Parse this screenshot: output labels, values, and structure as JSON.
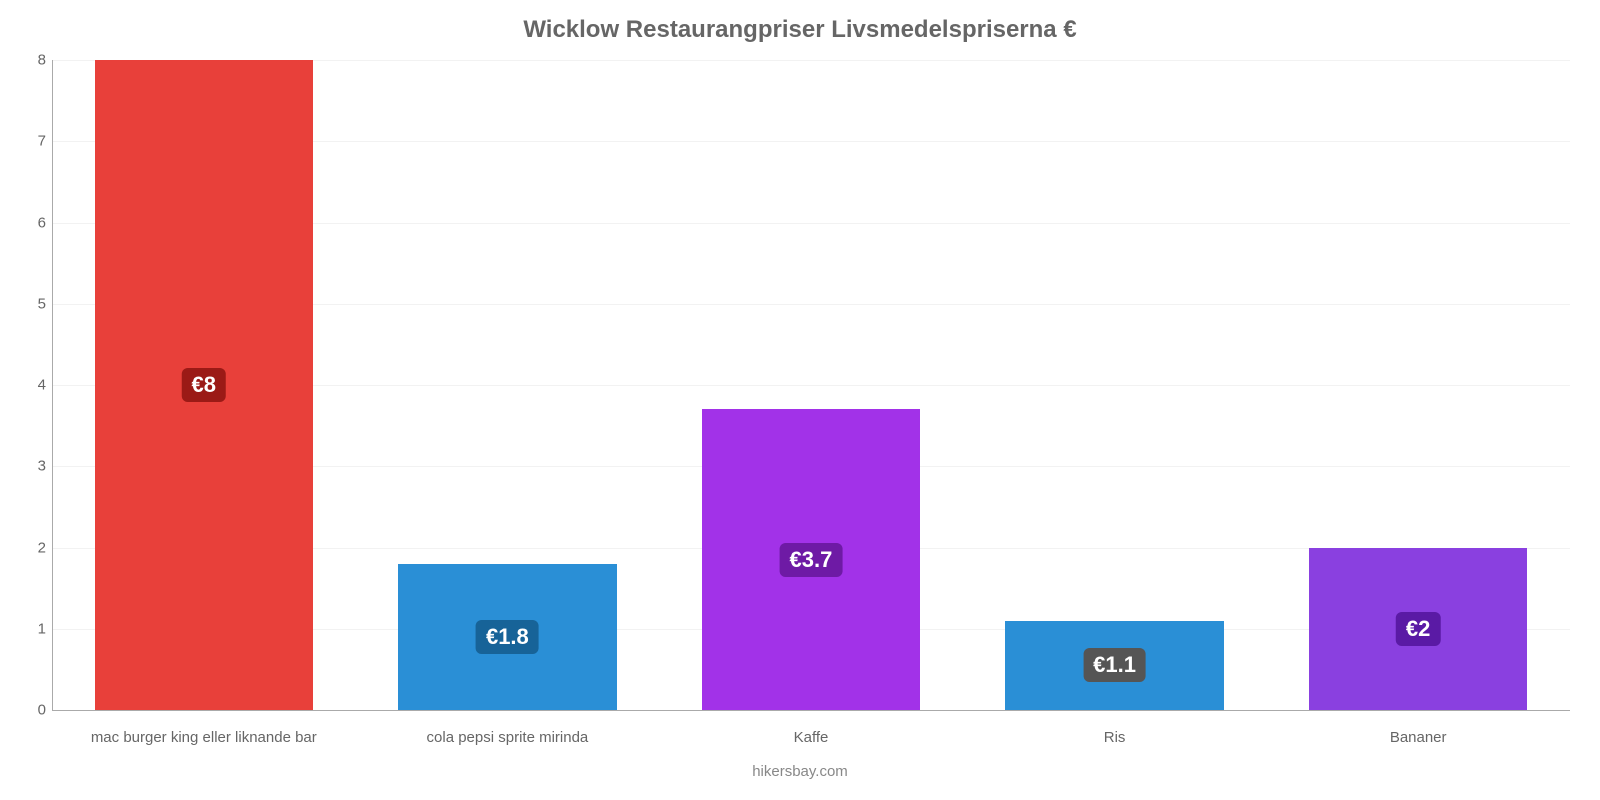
{
  "chart": {
    "type": "bar",
    "title": "Wicklow Restaurangpriser Livsmedelspriserna €",
    "title_fontsize": 24,
    "title_color": "#666666",
    "credit": "hikersbay.com",
    "credit_fontsize": 15,
    "credit_color": "#888888",
    "background_color": "#ffffff",
    "grid_color_zero": "#aaaaaa",
    "grid_color": "#f2f2f2",
    "ylim": [
      0,
      8
    ],
    "ytick_step": 1,
    "ytick_fontsize": 15,
    "ytick_color": "#666666",
    "xlabel_fontsize": 15,
    "xlabel_color": "#666666",
    "bar_width_pct": 72,
    "badge_fontsize": 22,
    "badge_radius": 6,
    "categories": [
      "mac burger king eller liknande bar",
      "cola pepsi sprite mirinda",
      "Kaffe",
      "Ris",
      "Bananer"
    ],
    "values": [
      8,
      1.8,
      3.7,
      1.1,
      2
    ],
    "value_labels": [
      "€8",
      "€1.8",
      "€3.7",
      "€1.1",
      "€2"
    ],
    "bar_colors": [
      "#e8403a",
      "#2a8fd6",
      "#a232e8",
      "#2a8fd6",
      "#8a40e0"
    ],
    "badge_colors": [
      "#9b1a16",
      "#176398",
      "#6e1aa5",
      "#555555",
      "#5a1aa5"
    ]
  }
}
